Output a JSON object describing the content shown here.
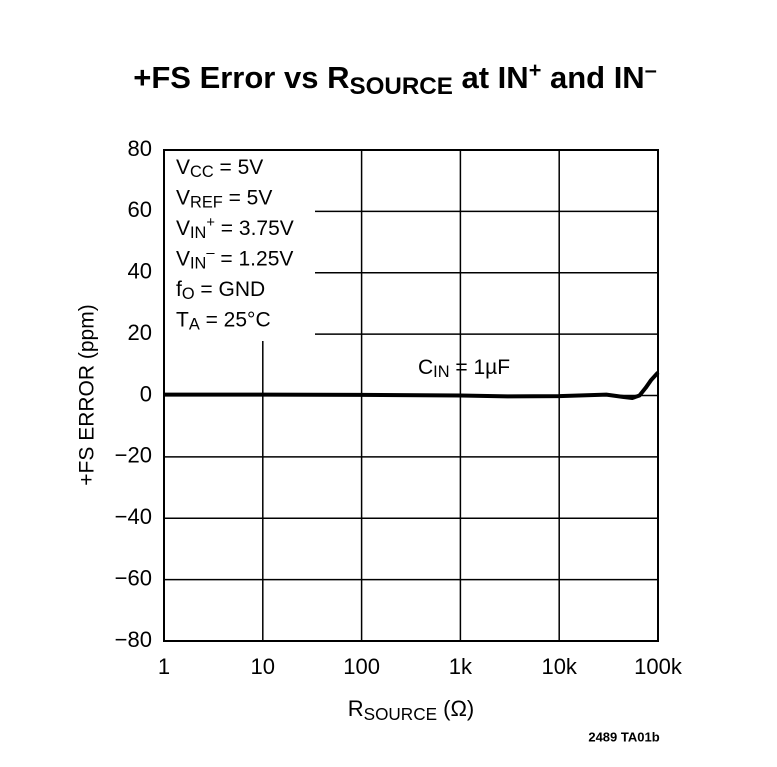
{
  "chart_data": {
    "type": "line",
    "title": [
      {
        "t": "+FS Error vs R"
      },
      {
        "sub": "SOURCE"
      },
      {
        "t": " at IN"
      },
      {
        "sup": "+"
      },
      {
        "t": " and IN"
      },
      {
        "sup": "–"
      }
    ],
    "x_label": [
      {
        "t": "R"
      },
      {
        "sub": "SOURCE"
      },
      {
        "t": " (Ω)"
      }
    ],
    "y_label": "+FS ERROR (ppm)",
    "conditions": [
      [
        {
          "t": "V"
        },
        {
          "sub": "CC"
        },
        {
          "t": " = 5V"
        }
      ],
      [
        {
          "t": "V"
        },
        {
          "sub": "REF"
        },
        {
          "t": " = 5V"
        }
      ],
      [
        {
          "t": "V"
        },
        {
          "sub": "IN"
        },
        {
          "sup": "+"
        },
        {
          "t": " = 3.75V"
        }
      ],
      [
        {
          "t": "V"
        },
        {
          "sub": "IN"
        },
        {
          "sup": "–"
        },
        {
          "t": " = 1.25V"
        }
      ],
      [
        {
          "t": "f"
        },
        {
          "sub": "O"
        },
        {
          "t": " = GND"
        }
      ],
      [
        {
          "t": "T"
        },
        {
          "sub": "A"
        },
        {
          "t": " = 25°C"
        }
      ]
    ],
    "curve_label": [
      {
        "t": "C"
      },
      {
        "sub": "IN"
      },
      {
        "t": " = 1µF"
      }
    ],
    "footnote": "2489 TA01b",
    "x": [
      1,
      10,
      100,
      1000,
      3000,
      10000,
      30000,
      45000,
      55000,
      65000,
      75000,
      85000,
      100000
    ],
    "values": [
      0.3,
      0.3,
      0.2,
      0,
      -0.3,
      -0.2,
      0.3,
      -0.5,
      -0.8,
      0,
      2.5,
      5,
      7.5
    ],
    "color": "#000000",
    "xscale": "log",
    "xlim": [
      1,
      100000
    ],
    "xticks": [
      1,
      10,
      100,
      {
        "value": 1000,
        "label": "1k"
      },
      {
        "value": 10000,
        "label": "10k"
      },
      {
        "value": 100000,
        "label": "100k"
      }
    ],
    "ylim": [
      -80,
      80
    ],
    "yticks": [
      {
        "value": -80,
        "label": "−80"
      },
      {
        "value": -60,
        "label": "−60"
      },
      {
        "value": -40,
        "label": "−40"
      },
      {
        "value": -20,
        "label": "−20"
      },
      0,
      20,
      40,
      60,
      80
    ],
    "grid": true
  }
}
